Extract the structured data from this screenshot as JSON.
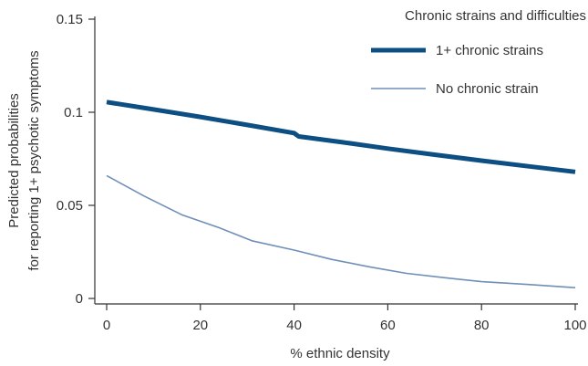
{
  "chart_data": {
    "type": "line",
    "xlabel": "% ethnic density",
    "ylabel_lines": [
      "Predicted probabilities",
      "for reporting 1+ psychotic symptoms"
    ],
    "xlim": [
      0,
      100
    ],
    "ylim": [
      0,
      0.15
    ],
    "x_ticks": [
      0,
      20,
      40,
      60,
      80,
      100
    ],
    "y_ticks": [
      0,
      0.05,
      0.1,
      0.15
    ],
    "x_tick_labels": [
      "0",
      "20",
      "40",
      "60",
      "80",
      "100"
    ],
    "y_tick_labels": [
      "0",
      "0.05",
      "0.1",
      "0.15"
    ],
    "grid": false,
    "legend": {
      "title": "Chronic strains and difficulties",
      "position": "top-right"
    },
    "series": [
      {
        "name": "1+ chronic strains",
        "color": "#0d4f82",
        "style": "thick",
        "x": [
          0,
          10,
          20,
          30,
          40,
          41,
          50,
          60,
          70,
          80,
          90,
          100
        ],
        "y": [
          0.1055,
          0.1015,
          0.0975,
          0.0932,
          0.0888,
          0.087,
          0.084,
          0.0805,
          0.0772,
          0.074,
          0.071,
          0.068
        ]
      },
      {
        "name": "No chronic strain",
        "color": "#6f8fb8",
        "style": "thin",
        "x": [
          0,
          8,
          16,
          24,
          31,
          40,
          48,
          56,
          64,
          72,
          80,
          90,
          100
        ],
        "y": [
          0.066,
          0.055,
          0.045,
          0.038,
          0.031,
          0.026,
          0.021,
          0.017,
          0.0135,
          0.0112,
          0.009,
          0.0075,
          0.0058
        ]
      }
    ]
  }
}
